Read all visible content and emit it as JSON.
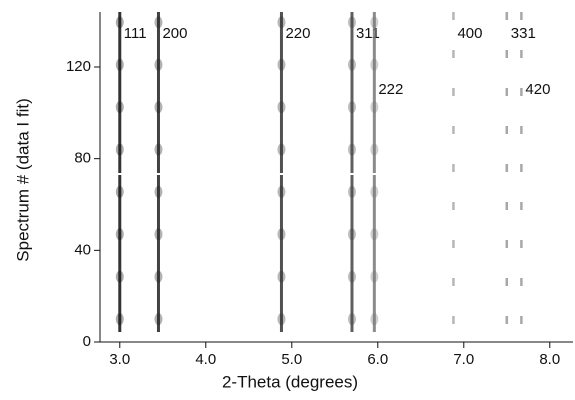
{
  "chart_data": {
    "type": "peak_map",
    "x_label": "2-Theta (degrees)",
    "y_label": "Spectrum # (data I fit)",
    "xlim": [
      2.77,
      8.27
    ],
    "ylim": [
      0,
      144
    ],
    "xticks": [
      {
        "value": 3,
        "label": "3.0"
      },
      {
        "value": 4,
        "label": "4.0"
      },
      {
        "value": 5,
        "label": "5.0"
      },
      {
        "value": 6,
        "label": "6.0"
      },
      {
        "value": 7,
        "label": "7.0"
      },
      {
        "value": 8,
        "label": "8.0"
      }
    ],
    "yticks": [
      0,
      40,
      80,
      120
    ],
    "peaks": [
      {
        "label": "111",
        "position": 3.0,
        "color": "#111111"
      },
      {
        "label": "200",
        "position": 3.45,
        "color": "#222222"
      },
      {
        "label": "220",
        "position": 4.88,
        "color": "#333333"
      },
      {
        "label": "311",
        "position": 5.7,
        "color": "#444444"
      },
      {
        "label": "222",
        "position": 5.96,
        "color": "#777777"
      },
      {
        "label": "400",
        "position": 6.88,
        "color": "#aaaaaa"
      },
      {
        "label": "331",
        "position": 7.5,
        "color": "#999999"
      },
      {
        "label": "420",
        "position": 7.67,
        "color": "#999999"
      }
    ]
  }
}
